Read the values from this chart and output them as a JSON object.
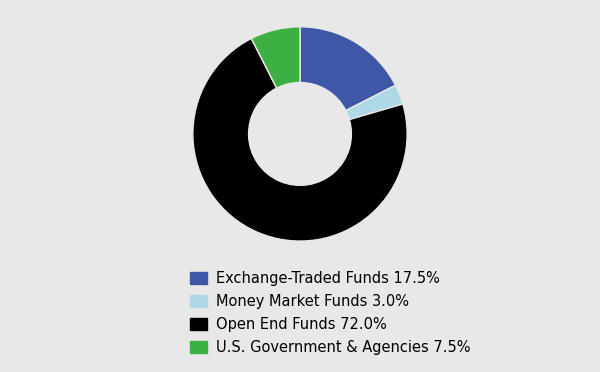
{
  "labels": [
    "Exchange-Traded Funds 17.5%",
    "Money Market Funds 3.0%",
    "Open End Funds 72.0%",
    "U.S. Government & Agencies 7.5%"
  ],
  "values": [
    17.5,
    3.0,
    72.0,
    7.5
  ],
  "colors": [
    "#3F57A7",
    "#ADD8E6",
    "#000000",
    "#3CB043"
  ],
  "background_color": "#E8E8E8",
  "legend_fontsize": 10.5,
  "figsize": [
    6.0,
    3.72
  ],
  "dpi": 100,
  "donut_width": 0.52,
  "startangle": 90
}
